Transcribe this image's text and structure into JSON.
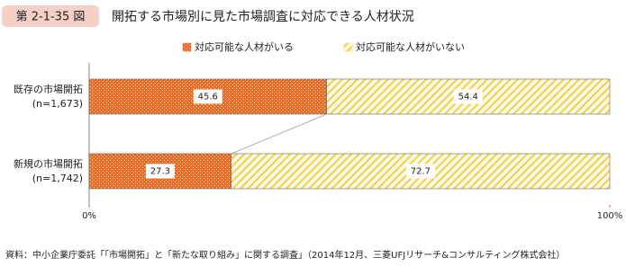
{
  "chart_data": {
    "type": "bar",
    "orientation": "horizontal",
    "stacked": true,
    "figure_label": "第 2-1-35 図",
    "title": "開拓する市場別に見た市場調査に対応できる人材状況",
    "categories": [
      "既存の市場開拓",
      "新規の市場開拓"
    ],
    "category_counts": [
      "(n=1,673)",
      "(n=1,742)"
    ],
    "series": [
      {
        "name": "対応可能な人材がいる",
        "color": "#f26b1d",
        "values": [
          45.6,
          27.3
        ]
      },
      {
        "name": "対応可能な人材がいない",
        "color": "#f5d64e",
        "values": [
          54.4,
          72.7
        ]
      }
    ],
    "xlim": [
      0,
      100
    ],
    "xticks": [
      {
        "value": 0,
        "label": "0%"
      },
      {
        "value": 100,
        "label": "100%"
      }
    ],
    "source": "資料：中小企業庁委託「「市場開拓」と「新たな取り組み」に関する調査」（2014年12月、三菱UFJリサーチ&コンサルティング株式会社）"
  }
}
